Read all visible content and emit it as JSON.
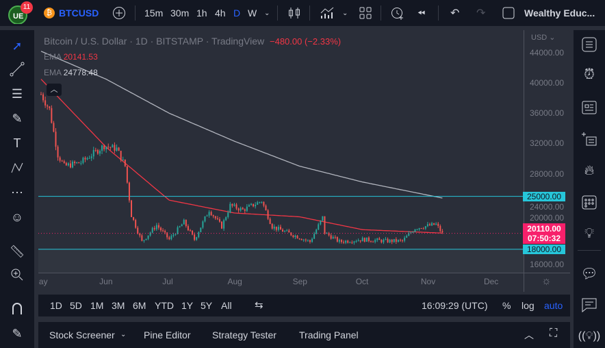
{
  "topbar": {
    "notification_count": "11",
    "symbol": "BTCUSD",
    "intervals": [
      "15m",
      "30m",
      "1h",
      "4h",
      "D",
      "W"
    ],
    "active_interval": "D",
    "layout_name": "Wealthy Educ..."
  },
  "legend": {
    "title": "Bitcoin / U.S. Dollar · 1D · BITSTAMP · TradingView",
    "change": "−480.00 (−2.33%)",
    "ema1_label": "EMA",
    "ema1_value": "20141.53",
    "ema2_label": "EMA",
    "ema2_value": "24778.48"
  },
  "price_axis": {
    "currency": "USD",
    "ticks": [
      "44000.00",
      "40000.00",
      "36000.00",
      "32000.00",
      "28000.00",
      "24000.00",
      "20000.00",
      "16000.00"
    ],
    "level_high": "25000.00",
    "level_low": "18000.00",
    "last_price": "20110.00",
    "countdown": "07:50:32"
  },
  "time_axis": {
    "labels": [
      "May",
      "Jun",
      "Jul",
      "Aug",
      "Sep",
      "Oct",
      "Nov",
      "Dec"
    ]
  },
  "periods": [
    "1D",
    "5D",
    "1M",
    "3M",
    "6M",
    "YTD",
    "1Y",
    "5Y",
    "All"
  ],
  "status": {
    "clock": "16:09:29 (UTC)",
    "percent": "%",
    "log": "log",
    "auto": "auto"
  },
  "bottom_tabs": [
    "Stock Screener",
    "Pine Editor",
    "Strategy Tester",
    "Trading Panel"
  ],
  "colors": {
    "up": "#26a69a",
    "down": "#ef5350",
    "ema50": "#f23645",
    "ema200": "#b2b5be",
    "level": "#26c6da",
    "accent": "#2962ff",
    "last": "#f7206b"
  },
  "chart_data": {
    "type": "candlestick",
    "approx_close_keypoints": [
      [
        "2022-05-01",
        38500
      ],
      [
        "2022-05-05",
        36500
      ],
      [
        "2022-05-09",
        30500
      ],
      [
        "2022-05-12",
        29000
      ],
      [
        "2022-05-20",
        29500
      ],
      [
        "2022-05-31",
        31700
      ],
      [
        "2022-06-06",
        31300
      ],
      [
        "2022-06-10",
        29000
      ],
      [
        "2022-06-13",
        22500
      ],
      [
        "2022-06-18",
        19000
      ],
      [
        "2022-06-25",
        21200
      ],
      [
        "2022-07-01",
        19300
      ],
      [
        "2022-07-08",
        21600
      ],
      [
        "2022-07-13",
        19300
      ],
      [
        "2022-07-20",
        23200
      ],
      [
        "2022-07-26",
        21000
      ],
      [
        "2022-07-30",
        23800
      ],
      [
        "2022-08-05",
        23200
      ],
      [
        "2022-08-14",
        24400
      ],
      [
        "2022-08-19",
        21000
      ],
      [
        "2022-08-28",
        20000
      ],
      [
        "2022-09-06",
        19000
      ],
      [
        "2022-09-12",
        22200
      ],
      [
        "2022-09-13",
        20200
      ],
      [
        "2022-09-20",
        19000
      ],
      [
        "2022-10-01",
        19300
      ],
      [
        "2022-10-12",
        19100
      ],
      [
        "2022-10-20",
        19100
      ],
      [
        "2022-10-26",
        20800
      ],
      [
        "2022-11-05",
        21300
      ],
      [
        "2022-11-08",
        20100
      ]
    ],
    "ema_short": {
      "last": 20141.53,
      "keypoints": [
        [
          "2022-05-01",
          40500
        ],
        [
          "2022-06-01",
          31500
        ],
        [
          "2022-07-01",
          24500
        ],
        [
          "2022-08-01",
          22800
        ],
        [
          "2022-09-01",
          22300
        ],
        [
          "2022-10-01",
          20600
        ],
        [
          "2022-11-08",
          20141.53
        ]
      ]
    },
    "ema_long": {
      "last": 24778.48,
      "keypoints": [
        [
          "2022-05-01",
          44200
        ],
        [
          "2022-06-01",
          40500
        ],
        [
          "2022-07-01",
          36000
        ],
        [
          "2022-08-01",
          32300
        ],
        [
          "2022-09-01",
          29000
        ],
        [
          "2022-10-01",
          26900
        ],
        [
          "2022-11-08",
          24778.48
        ]
      ]
    },
    "horizontal_levels": [
      25000,
      18000
    ],
    "ylim": [
      16000,
      44000
    ]
  }
}
